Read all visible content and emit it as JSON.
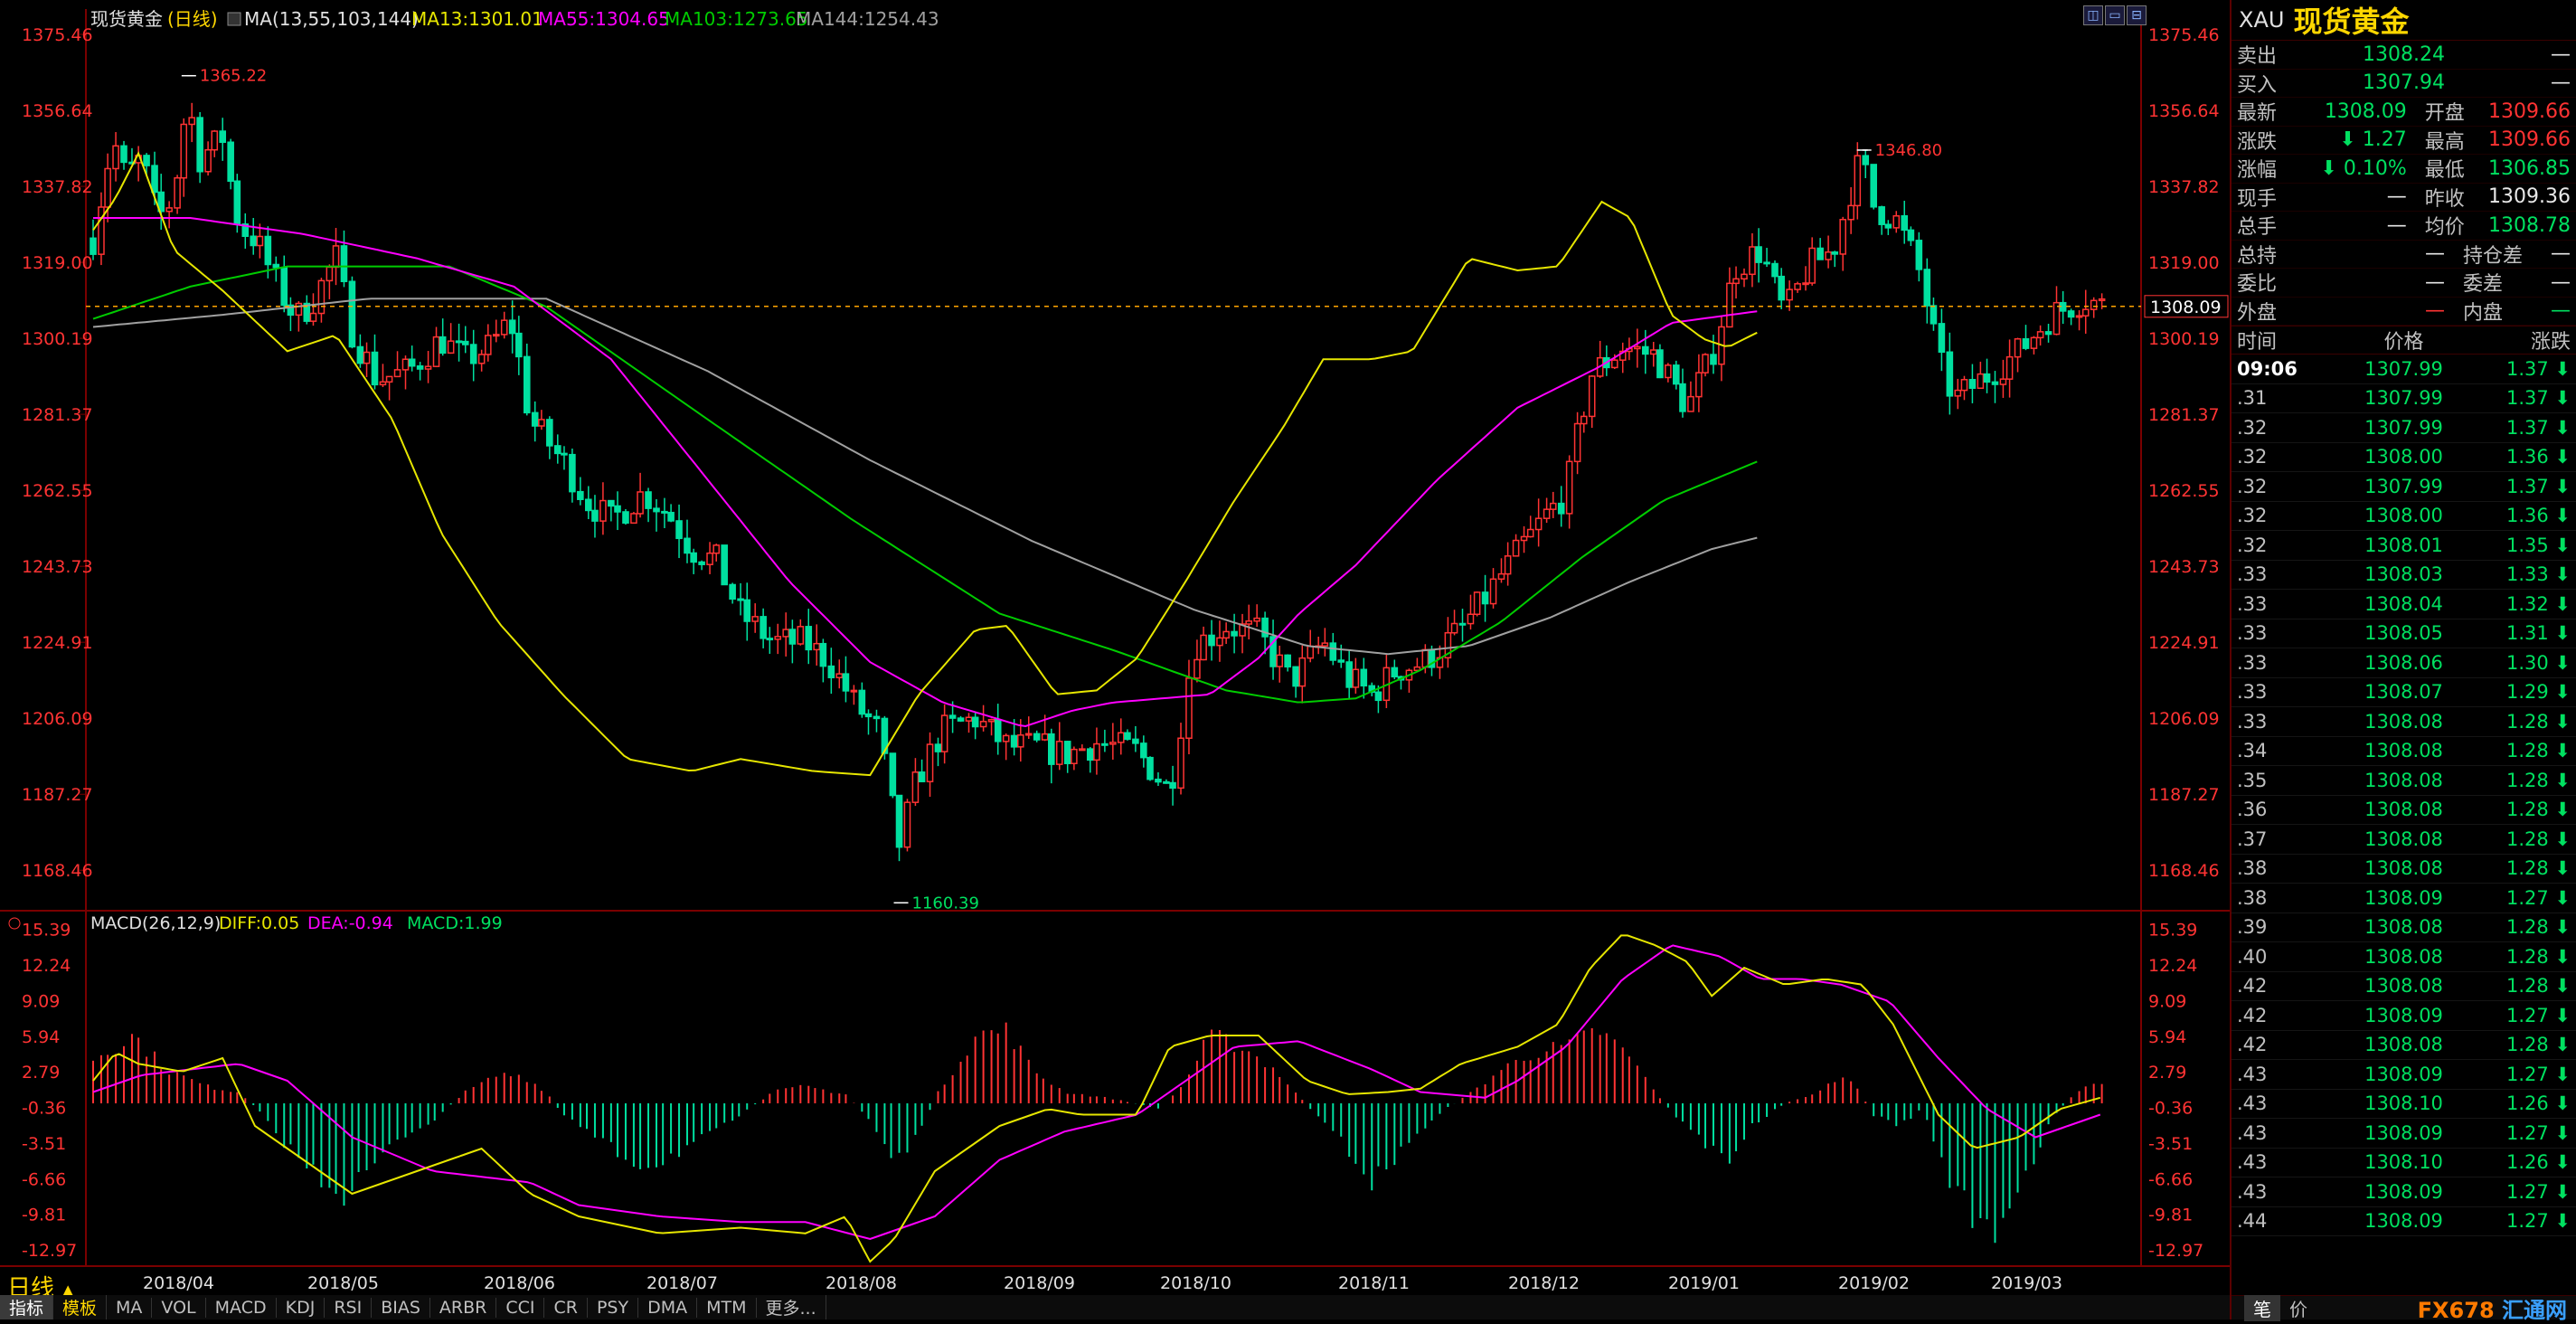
{
  "header": {
    "name": "现货黄金",
    "period": "(日线)",
    "ma_label": "MA(13,55,103,144)",
    "ma13": "MA13:1301.01",
    "ma55": "MA55:1304.65",
    "ma103": "MA103:1273.65",
    "ma144": "MA144:1254.43"
  },
  "macd_header": {
    "label": "MACD(26,12,9)",
    "diff": "DIFF:0.05",
    "dea": "DEA:-0.94",
    "macd": "MACD:1.99"
  },
  "price_axis": [
    "1375.46",
    "1356.64",
    "1337.82",
    "1319.00",
    "1300.19",
    "1281.37",
    "1262.55",
    "1243.73",
    "1224.91",
    "1206.09",
    "1187.27",
    "1168.46"
  ],
  "macd_axis": [
    "15.39",
    "12.24",
    "9.09",
    "5.94",
    "2.79",
    "-0.36",
    "-3.51",
    "-6.66",
    "-9.81",
    "-12.97"
  ],
  "x_axis": [
    "2018/04",
    "2018/05",
    "2018/06",
    "2018/07",
    "2018/08",
    "2018/09",
    "2018/10",
    "2018/11",
    "2018/12",
    "2019/01",
    "2019/02",
    "2019/03"
  ],
  "annotations": {
    "high1": "1365.22",
    "low": "1160.39",
    "high2": "1346.80",
    "current": "1308.09"
  },
  "period_label": "日线",
  "period_arrow": "▲",
  "bottom_tabs": [
    "指标",
    "模板",
    "MA",
    "VOL",
    "MACD",
    "KDJ",
    "RSI",
    "BIAS",
    "ARBR",
    "CCI",
    "CR",
    "PSY",
    "DMA",
    "MTM",
    "更多..."
  ],
  "window_buttons": [
    "◫",
    "▭",
    "⊟"
  ],
  "quote": {
    "code": "XAU",
    "name": "现货黄金",
    "rows": [
      {
        "l1": "卖出",
        "v1": "1308.24",
        "c1": "green",
        "l2": "",
        "v2": "—",
        "c2": "white"
      },
      {
        "l1": "买入",
        "v1": "1307.94",
        "c1": "green",
        "l2": "",
        "v2": "—",
        "c2": "white"
      },
      {
        "l1": "最新",
        "v1": "1308.09",
        "c1": "green",
        "l2": "开盘",
        "v2": "1309.66",
        "c2": "red"
      },
      {
        "l1": "涨跌",
        "v1": "⬇ 1.27",
        "c1": "green",
        "l2": "最高",
        "v2": "1309.66",
        "c2": "red"
      },
      {
        "l1": "涨幅",
        "v1": "⬇ 0.10%",
        "c1": "green",
        "l2": "最低",
        "v2": "1306.85",
        "c2": "green"
      },
      {
        "l1": "现手",
        "v1": "—",
        "c1": "white",
        "l2": "昨收",
        "v2": "1309.36",
        "c2": "white"
      },
      {
        "l1": "总手",
        "v1": "—",
        "c1": "white",
        "l2": "均价",
        "v2": "1308.78",
        "c2": "green"
      },
      {
        "l1": "总持",
        "v1": "—",
        "c1": "white",
        "l2": "持仓差",
        "v2": "—",
        "c2": "white"
      },
      {
        "l1": "委比",
        "v1": "—",
        "c1": "white",
        "l2": "委差",
        "v2": "—",
        "c2": "white"
      },
      {
        "l1": "外盘",
        "v1": "—",
        "c1": "red",
        "l2": "内盘",
        "v2": "—",
        "c2": "green"
      }
    ],
    "ticks_header": [
      "时间",
      "价格",
      "涨跌"
    ],
    "ticks": [
      {
        "t": "09:06",
        "p": "1307.99",
        "c": "1.37 ⬇"
      },
      {
        "t": ".31",
        "p": "1307.99",
        "c": "1.37 ⬇"
      },
      {
        "t": ".32",
        "p": "1307.99",
        "c": "1.37 ⬇"
      },
      {
        "t": ".32",
        "p": "1308.00",
        "c": "1.36 ⬇"
      },
      {
        "t": ".32",
        "p": "1307.99",
        "c": "1.37 ⬇"
      },
      {
        "t": ".32",
        "p": "1308.00",
        "c": "1.36 ⬇"
      },
      {
        "t": ".32",
        "p": "1308.01",
        "c": "1.35 ⬇"
      },
      {
        "t": ".33",
        "p": "1308.03",
        "c": "1.33 ⬇"
      },
      {
        "t": ".33",
        "p": "1308.04",
        "c": "1.32 ⬇"
      },
      {
        "t": ".33",
        "p": "1308.05",
        "c": "1.31 ⬇"
      },
      {
        "t": ".33",
        "p": "1308.06",
        "c": "1.30 ⬇"
      },
      {
        "t": ".33",
        "p": "1308.07",
        "c": "1.29 ⬇"
      },
      {
        "t": ".33",
        "p": "1308.08",
        "c": "1.28 ⬇"
      },
      {
        "t": ".34",
        "p": "1308.08",
        "c": "1.28 ⬇"
      },
      {
        "t": ".35",
        "p": "1308.08",
        "c": "1.28 ⬇"
      },
      {
        "t": ".36",
        "p": "1308.08",
        "c": "1.28 ⬇"
      },
      {
        "t": ".37",
        "p": "1308.08",
        "c": "1.28 ⬇"
      },
      {
        "t": ".38",
        "p": "1308.08",
        "c": "1.28 ⬇"
      },
      {
        "t": ".38",
        "p": "1308.09",
        "c": "1.27 ⬇"
      },
      {
        "t": ".39",
        "p": "1308.08",
        "c": "1.28 ⬇"
      },
      {
        "t": ".40",
        "p": "1308.08",
        "c": "1.28 ⬇"
      },
      {
        "t": ".42",
        "p": "1308.08",
        "c": "1.28 ⬇"
      },
      {
        "t": ".42",
        "p": "1308.09",
        "c": "1.27 ⬇"
      },
      {
        "t": ".42",
        "p": "1308.08",
        "c": "1.28 ⬇"
      },
      {
        "t": ".43",
        "p": "1308.09",
        "c": "1.27 ⬇"
      },
      {
        "t": ".43",
        "p": "1308.10",
        "c": "1.26 ⬇"
      },
      {
        "t": ".43",
        "p": "1308.09",
        "c": "1.27 ⬇"
      },
      {
        "t": ".43",
        "p": "1308.10",
        "c": "1.26 ⬇"
      },
      {
        "t": ".43",
        "p": "1308.09",
        "c": "1.27 ⬇"
      },
      {
        "t": ".44",
        "p": "1308.09",
        "c": "1.27 ⬇"
      }
    ],
    "footer_btn1": "笔",
    "footer_btn2": "价",
    "logo_a": "FX678",
    "logo_b": "汇通网"
  },
  "colors": {
    "up": "#ff3333",
    "down": "#00e0a0",
    "ma13": "#e6e600",
    "ma55": "#ff00ff",
    "ma103": "#00cc00",
    "ma144": "#a0a0a0",
    "axis": "#ff3333"
  },
  "chart_data": {
    "type": "candlestick",
    "ylim": [
      1160,
      1375.46
    ],
    "macd_ylim": [
      -14,
      16
    ],
    "ma13_anchors": [
      [
        0,
        1327
      ],
      [
        14,
        1335
      ],
      [
        28,
        1346
      ],
      [
        50,
        1322
      ],
      [
        80,
        1312
      ],
      [
        120,
        1297
      ],
      [
        150,
        1301
      ],
      [
        185,
        1280
      ],
      [
        215,
        1252
      ],
      [
        250,
        1230
      ],
      [
        290,
        1212
      ],
      [
        330,
        1196
      ],
      [
        370,
        1193
      ],
      [
        400,
        1196
      ],
      [
        445,
        1193
      ],
      [
        480,
        1192
      ],
      [
        510,
        1212
      ],
      [
        545,
        1228
      ],
      [
        565,
        1229
      ],
      [
        595,
        1212
      ],
      [
        620,
        1213
      ],
      [
        645,
        1221
      ],
      [
        675,
        1240
      ],
      [
        705,
        1260
      ],
      [
        735,
        1278
      ],
      [
        760,
        1295
      ],
      [
        790,
        1295
      ],
      [
        815,
        1297
      ],
      [
        850,
        1320
      ],
      [
        880,
        1317
      ],
      [
        905,
        1318
      ],
      [
        932,
        1334
      ],
      [
        950,
        1330
      ],
      [
        975,
        1306
      ],
      [
        995,
        1300
      ],
      [
        1010,
        1298
      ],
      [
        1030,
        1302
      ]
    ],
    "ma55_anchors": [
      [
        0,
        1330
      ],
      [
        60,
        1330
      ],
      [
        130,
        1326
      ],
      [
        200,
        1320
      ],
      [
        260,
        1313
      ],
      [
        320,
        1295
      ],
      [
        380,
        1265
      ],
      [
        430,
        1240
      ],
      [
        480,
        1220
      ],
      [
        525,
        1210
      ],
      [
        575,
        1204
      ],
      [
        605,
        1208
      ],
      [
        630,
        1210
      ],
      [
        690,
        1212
      ],
      [
        720,
        1221
      ],
      [
        745,
        1232
      ],
      [
        780,
        1244
      ],
      [
        830,
        1265
      ],
      [
        880,
        1283
      ],
      [
        930,
        1293
      ],
      [
        975,
        1304
      ],
      [
        1030,
        1307
      ]
    ],
    "ma103_anchors": [
      [
        0,
        1305
      ],
      [
        60,
        1313
      ],
      [
        120,
        1318
      ],
      [
        220,
        1318
      ],
      [
        280,
        1308
      ],
      [
        380,
        1280
      ],
      [
        470,
        1255
      ],
      [
        560,
        1232
      ],
      [
        630,
        1223
      ],
      [
        700,
        1213
      ],
      [
        745,
        1210
      ],
      [
        780,
        1211
      ],
      [
        820,
        1218
      ],
      [
        870,
        1230
      ],
      [
        920,
        1246
      ],
      [
        970,
        1260
      ],
      [
        1030,
        1270
      ]
    ],
    "ma144_anchors": [
      [
        0,
        1303
      ],
      [
        80,
        1306
      ],
      [
        170,
        1310
      ],
      [
        280,
        1310
      ],
      [
        380,
        1292
      ],
      [
        480,
        1270
      ],
      [
        580,
        1250
      ],
      [
        680,
        1233
      ],
      [
        750,
        1224
      ],
      [
        800,
        1222
      ],
      [
        850,
        1224
      ],
      [
        900,
        1231
      ],
      [
        950,
        1240
      ],
      [
        1000,
        1248
      ],
      [
        1030,
        1251
      ]
    ],
    "diff_anchors": [
      [
        0,
        2
      ],
      [
        14,
        4.5
      ],
      [
        28,
        3.5
      ],
      [
        55,
        2.8
      ],
      [
        80,
        4
      ],
      [
        100,
        -2
      ],
      [
        130,
        -5
      ],
      [
        160,
        -8
      ],
      [
        200,
        -6
      ],
      [
        240,
        -4
      ],
      [
        270,
        -8
      ],
      [
        300,
        -10
      ],
      [
        350,
        -11.5
      ],
      [
        400,
        -11
      ],
      [
        440,
        -11.5
      ],
      [
        465,
        -10
      ],
      [
        480,
        -14
      ],
      [
        495,
        -12
      ],
      [
        520,
        -6
      ],
      [
        560,
        -2
      ],
      [
        590,
        -0.5
      ],
      [
        610,
        -1
      ],
      [
        645,
        -1
      ],
      [
        665,
        5
      ],
      [
        690,
        6
      ],
      [
        720,
        6
      ],
      [
        750,
        2
      ],
      [
        775,
        0.8
      ],
      [
        800,
        1
      ],
      [
        820,
        1.3
      ],
      [
        845,
        3.5
      ],
      [
        880,
        5
      ],
      [
        905,
        7
      ],
      [
        925,
        12
      ],
      [
        945,
        15
      ],
      [
        965,
        14
      ],
      [
        985,
        12.5
      ],
      [
        1000,
        9.5
      ],
      [
        1020,
        12
      ],
      [
        1045,
        10.5
      ],
      [
        1070,
        11
      ],
      [
        1093,
        10.5
      ],
      [
        1112,
        7
      ],
      [
        1140,
        -1
      ],
      [
        1162,
        -4
      ],
      [
        1190,
        -3
      ],
      [
        1215,
        -0.5
      ],
      [
        1240,
        0.5
      ]
    ],
    "dea_anchors": [
      [
        0,
        1
      ],
      [
        30,
        2.5
      ],
      [
        60,
        3
      ],
      [
        90,
        3.5
      ],
      [
        120,
        2
      ],
      [
        160,
        -3
      ],
      [
        210,
        -6
      ],
      [
        270,
        -7
      ],
      [
        300,
        -9
      ],
      [
        350,
        -10
      ],
      [
        400,
        -10.5
      ],
      [
        440,
        -10.5
      ],
      [
        480,
        -12
      ],
      [
        520,
        -10
      ],
      [
        560,
        -5
      ],
      [
        600,
        -2.5
      ],
      [
        645,
        -1
      ],
      [
        675,
        2
      ],
      [
        705,
        5
      ],
      [
        745,
        5.5
      ],
      [
        790,
        3
      ],
      [
        820,
        1
      ],
      [
        860,
        0.5
      ],
      [
        880,
        2
      ],
      [
        910,
        5
      ],
      [
        945,
        11
      ],
      [
        975,
        14
      ],
      [
        1005,
        13
      ],
      [
        1030,
        11
      ],
      [
        1055,
        11
      ],
      [
        1080,
        10.5
      ],
      [
        1110,
        9
      ],
      [
        1140,
        4
      ],
      [
        1170,
        -0.5
      ],
      [
        1200,
        -3
      ],
      [
        1240,
        -1
      ]
    ],
    "hist_anchors": [
      [
        0,
        4
      ],
      [
        25,
        6
      ],
      [
        45,
        3
      ],
      [
        70,
        1.5
      ],
      [
        90,
        1
      ],
      [
        100,
        -0.3
      ],
      [
        115,
        -3
      ],
      [
        135,
        -6
      ],
      [
        155,
        -8
      ],
      [
        170,
        -6
      ],
      [
        190,
        -3
      ],
      [
        210,
        -1.5
      ],
      [
        230,
        1
      ],
      [
        250,
        2.5
      ],
      [
        265,
        2.5
      ],
      [
        280,
        1
      ],
      [
        290,
        -1
      ],
      [
        310,
        -3
      ],
      [
        330,
        -5
      ],
      [
        345,
        -5.5
      ],
      [
        365,
        -4
      ],
      [
        385,
        -2.5
      ],
      [
        400,
        -1
      ],
      [
        420,
        1
      ],
      [
        440,
        1.5
      ],
      [
        465,
        0.8
      ],
      [
        480,
        -1.5
      ],
      [
        495,
        -5
      ],
      [
        510,
        -3
      ],
      [
        520,
        0.5
      ],
      [
        545,
        6
      ],
      [
        565,
        6.5
      ],
      [
        580,
        3
      ],
      [
        600,
        1
      ],
      [
        630,
        0.4
      ],
      [
        660,
        -0.5
      ],
      [
        675,
        2
      ],
      [
        690,
        6
      ],
      [
        710,
        5
      ],
      [
        730,
        3
      ],
      [
        755,
        -1
      ],
      [
        775,
        -4
      ],
      [
        790,
        -7
      ],
      [
        810,
        -4
      ],
      [
        830,
        -1
      ],
      [
        850,
        0.8
      ],
      [
        870,
        3
      ],
      [
        890,
        4.5
      ],
      [
        910,
        5
      ],
      [
        930,
        6.5
      ],
      [
        950,
        4
      ],
      [
        965,
        1
      ],
      [
        980,
        -1.5
      ],
      [
        995,
        -3.5
      ],
      [
        1010,
        -5
      ],
      [
        1025,
        -2
      ],
      [
        1045,
        0
      ],
      [
        1065,
        1
      ],
      [
        1085,
        2.5
      ],
      [
        1100,
        -1
      ],
      [
        1115,
        -2
      ],
      [
        1130,
        -0.5
      ],
      [
        1145,
        -6
      ],
      [
        1160,
        -10
      ],
      [
        1175,
        -11
      ],
      [
        1195,
        -6
      ],
      [
        1212,
        -1
      ],
      [
        1225,
        1
      ],
      [
        1240,
        2
      ]
    ],
    "candle_anchors": [
      [
        0,
        1325
      ],
      [
        5,
        1335
      ],
      [
        12,
        1350
      ],
      [
        20,
        1340
      ],
      [
        30,
        1345
      ],
      [
        40,
        1330
      ],
      [
        50,
        1335
      ],
      [
        58,
        1360
      ],
      [
        66,
        1345
      ],
      [
        80,
        1350
      ],
      [
        90,
        1328
      ],
      [
        100,
        1325
      ],
      [
        112,
        1315
      ],
      [
        125,
        1305
      ],
      [
        135,
        1309
      ],
      [
        150,
        1320
      ],
      [
        160,
        1302
      ],
      [
        175,
        1290
      ],
      [
        195,
        1292
      ],
      [
        215,
        1300
      ],
      [
        230,
        1295
      ],
      [
        245,
        1298
      ],
      [
        258,
        1305
      ],
      [
        270,
        1280
      ],
      [
        290,
        1270
      ],
      [
        305,
        1260
      ],
      [
        320,
        1255
      ],
      [
        340,
        1262
      ],
      [
        355,
        1257
      ],
      [
        370,
        1248
      ],
      [
        385,
        1245
      ],
      [
        400,
        1232
      ],
      [
        420,
        1225
      ],
      [
        440,
        1225
      ],
      [
        455,
        1220
      ],
      [
        470,
        1210
      ],
      [
        485,
        1203
      ],
      [
        498,
        1175
      ],
      [
        510,
        1192
      ],
      [
        525,
        1203
      ],
      [
        545,
        1206
      ],
      [
        565,
        1199
      ],
      [
        585,
        1199
      ],
      [
        600,
        1197
      ],
      [
        620,
        1200
      ],
      [
        645,
        1198
      ],
      [
        665,
        1188
      ],
      [
        680,
        1224
      ],
      [
        700,
        1229
      ],
      [
        720,
        1227
      ],
      [
        740,
        1215
      ],
      [
        760,
        1225
      ],
      [
        775,
        1216
      ],
      [
        790,
        1212
      ],
      [
        805,
        1218
      ],
      [
        822,
        1220
      ],
      [
        845,
        1228
      ],
      [
        860,
        1236
      ],
      [
        878,
        1246
      ],
      [
        895,
        1255
      ],
      [
        910,
        1262
      ],
      [
        925,
        1291
      ],
      [
        945,
        1298
      ],
      [
        965,
        1296
      ],
      [
        985,
        1283
      ],
      [
        1000,
        1296
      ],
      [
        1015,
        1318
      ],
      [
        1030,
        1322
      ],
      [
        1045,
        1306
      ],
      [
        1060,
        1318
      ],
      [
        1075,
        1322
      ],
      [
        1092,
        1345
      ],
      [
        1100,
        1333
      ],
      [
        1115,
        1329
      ],
      [
        1130,
        1315
      ],
      [
        1140,
        1295
      ],
      [
        1150,
        1285
      ],
      [
        1170,
        1291
      ],
      [
        1190,
        1297
      ],
      [
        1210,
        1306
      ],
      [
        1230,
        1310
      ],
      [
        1243,
        1308
      ]
    ]
  }
}
